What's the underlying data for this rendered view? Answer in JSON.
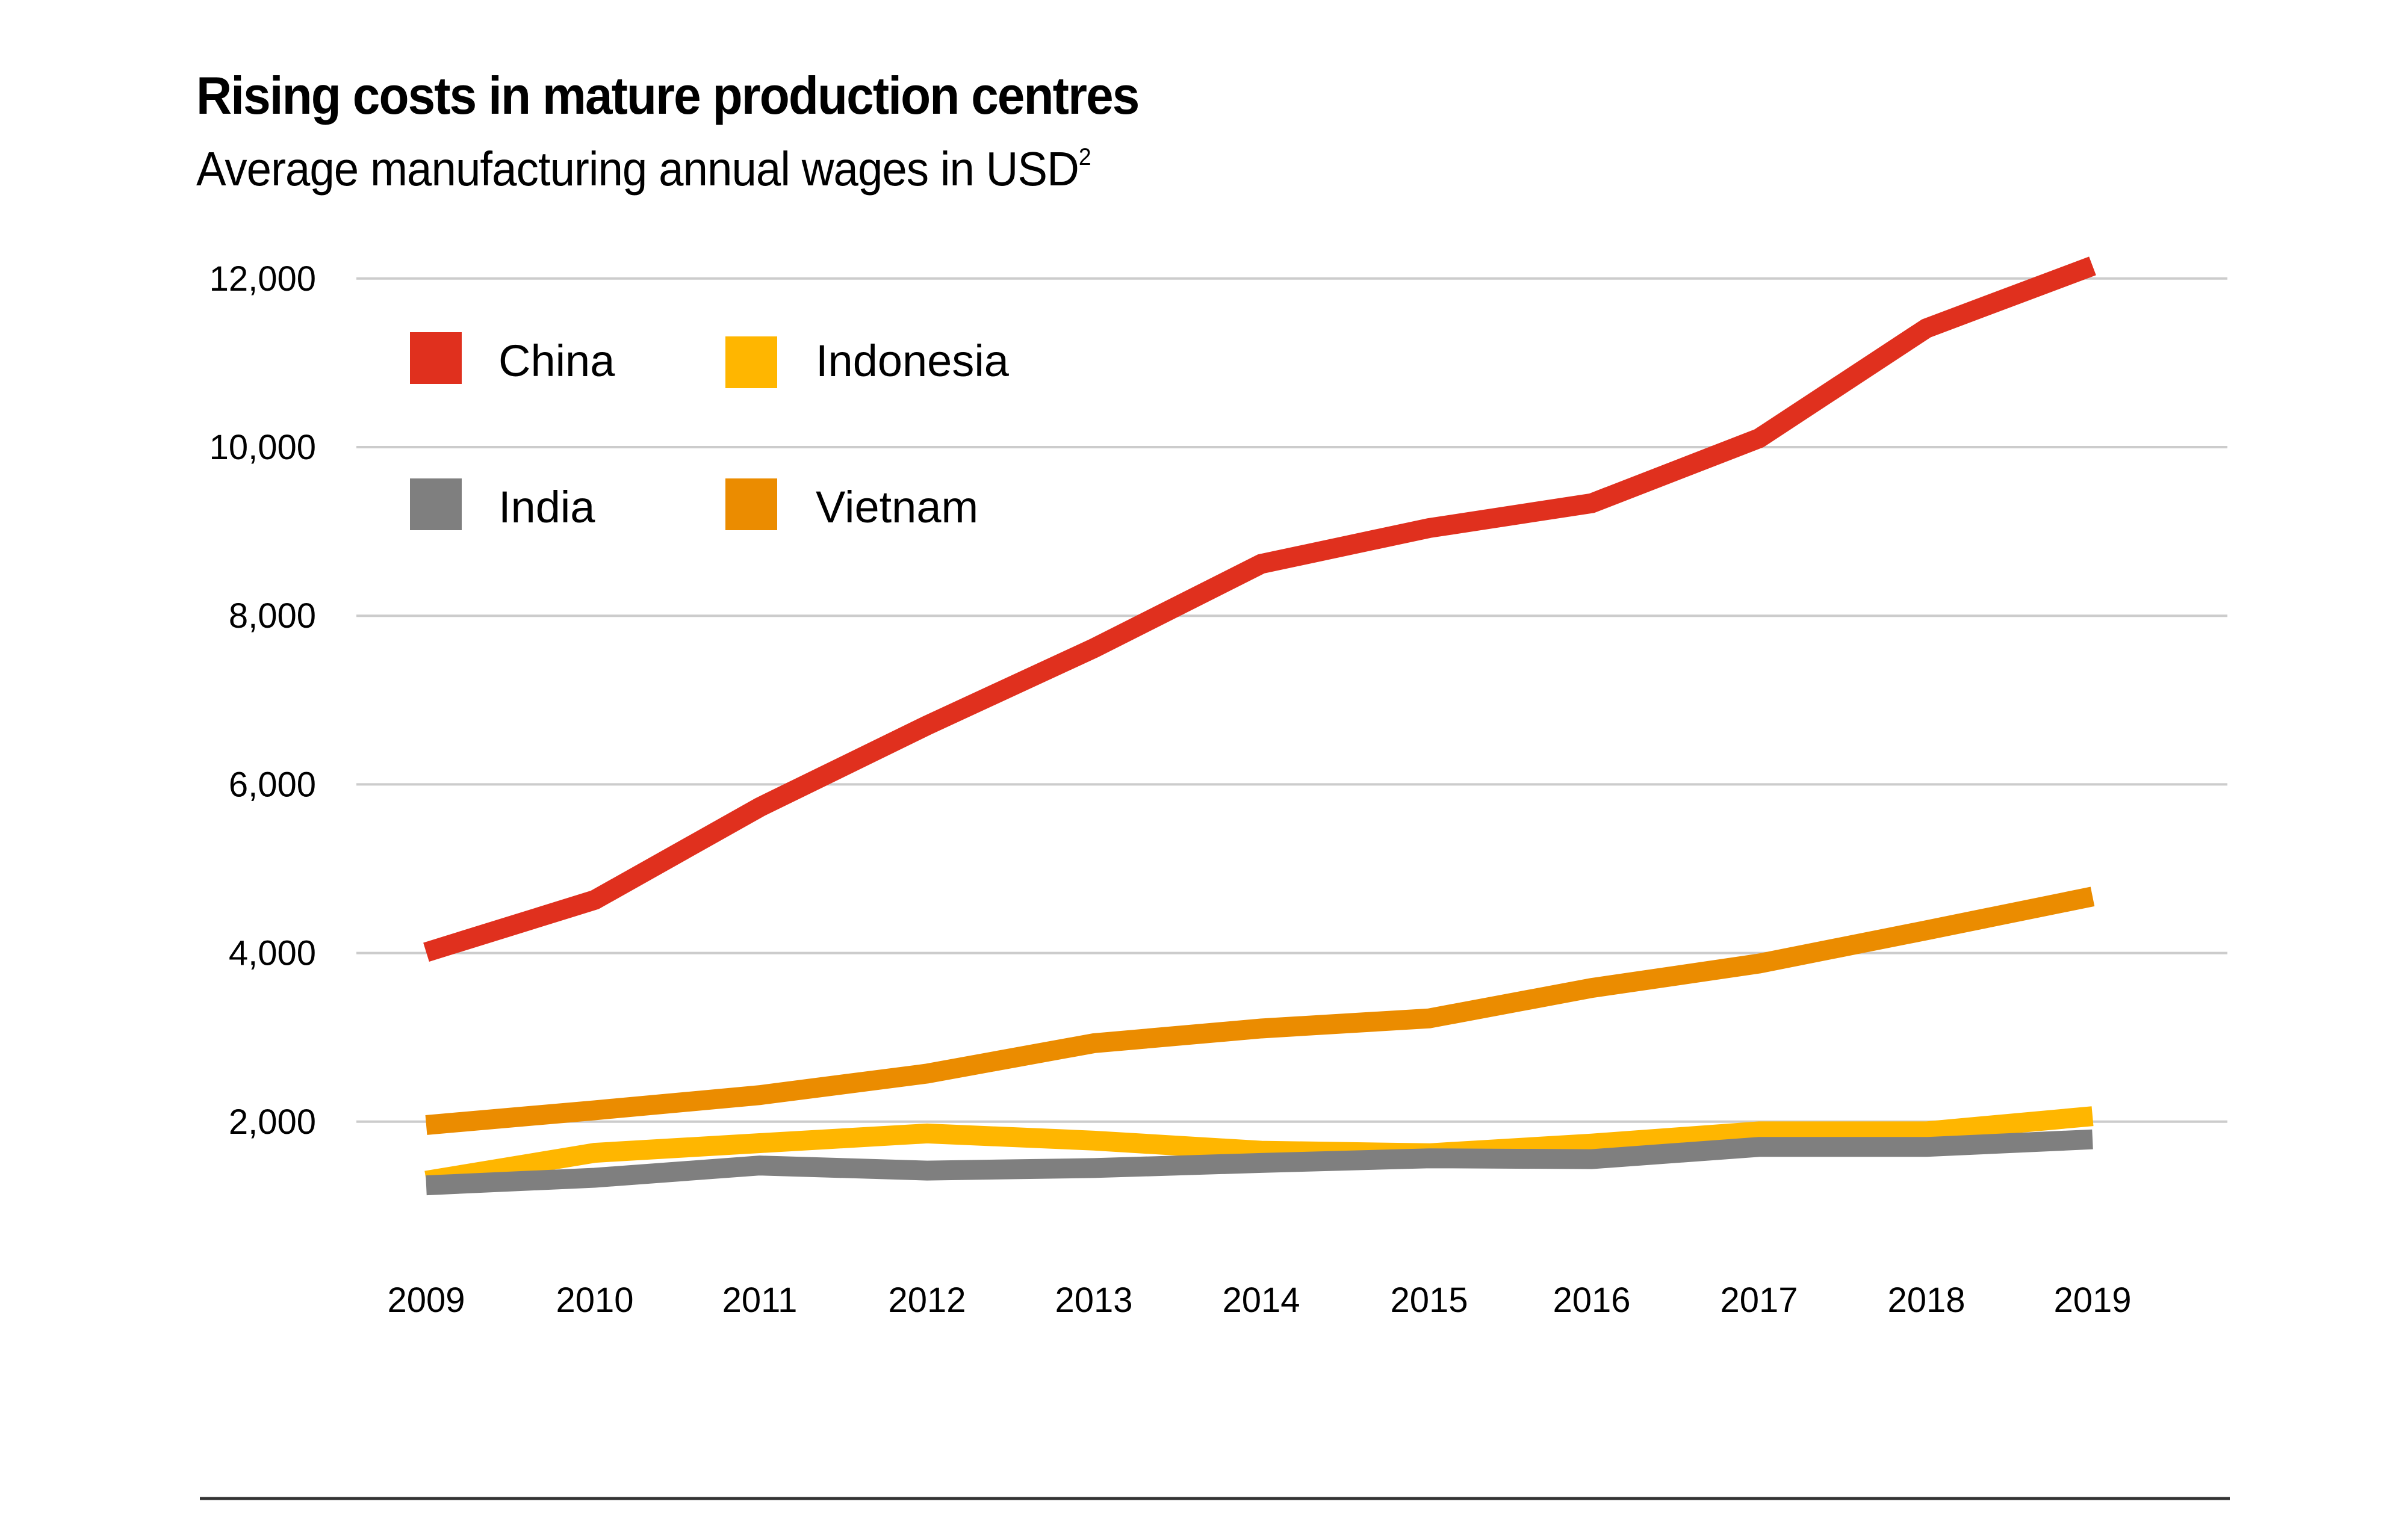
{
  "header": {
    "title": "Rising costs in mature production centres",
    "subtitle": "Average manufacturing annual wages in USD",
    "subtitle_superscript": "2"
  },
  "chart_data": {
    "type": "line",
    "title": "Rising costs in mature production centres",
    "subtitle": "Average manufacturing annual wages in USD²",
    "xlabel": "",
    "ylabel": "",
    "x": [
      "2009",
      "2010",
      "2011",
      "2012",
      "2013",
      "2014",
      "2015",
      "2016",
      "2017",
      "2018",
      "2019"
    ],
    "yticks": [
      2000,
      4000,
      6000,
      8000,
      10000,
      12000
    ],
    "ytick_labels": [
      "2,000",
      "4,000",
      "6,000",
      "8,000",
      "10,000",
      "12,000"
    ],
    "ylim": [
      0,
      12000
    ],
    "grid": "horizontal",
    "legend": "top-left",
    "series": [
      {
        "name": "China",
        "color": "#E0301E",
        "values": [
          4010,
          4630,
          5730,
          6700,
          7615,
          8615,
          9040,
          9335,
          10105,
          11410,
          12150
        ]
      },
      {
        "name": "Indonesia",
        "color": "#FFB600",
        "values": [
          1300,
          1630,
          1745,
          1860,
          1775,
          1655,
          1625,
          1740,
          1885,
          1885,
          2065
        ]
      },
      {
        "name": "India",
        "color": "#7F7F7F",
        "values": [
          1245,
          1335,
          1480,
          1420,
          1450,
          1510,
          1565,
          1555,
          1700,
          1700,
          1790
        ]
      },
      {
        "name": "Vietnam",
        "color": "#EB8C00",
        "values": [
          1960,
          2135,
          2315,
          2570,
          2930,
          3105,
          3225,
          3585,
          3875,
          4270,
          4670
        ]
      }
    ],
    "legend_entries": [
      {
        "label": "China",
        "color": "#E0301E"
      },
      {
        "label": "Indonesia",
        "color": "#FFB600"
      },
      {
        "label": "India",
        "color": "#7F7F7F"
      },
      {
        "label": "Vietnam",
        "color": "#EB8C00"
      }
    ]
  },
  "colors": {
    "gridline": "#CCCCCC",
    "bottom_rule": "#333333",
    "text": "#000000"
  }
}
